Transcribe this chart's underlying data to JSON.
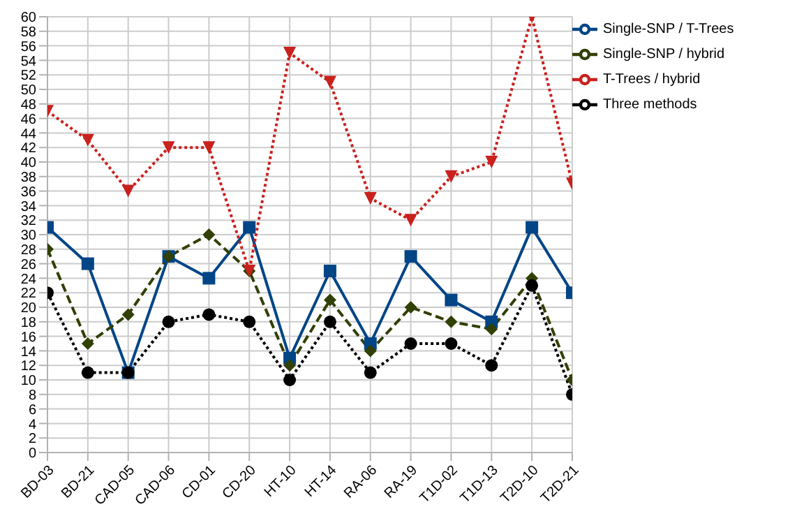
{
  "chart_data": {
    "type": "line",
    "categories": [
      "BD-03",
      "BD-21",
      "CAD-05",
      "CAD-06",
      "CD-01",
      "CD-20",
      "HT-10",
      "HT-14",
      "RA-06",
      "RA-19",
      "T1D-02",
      "T1D-13",
      "T2D-10",
      "T2D-21"
    ],
    "series": [
      {
        "name": "Single-SNP / T-Trees",
        "color": "#004586",
        "marker": "square",
        "line_style": "solid",
        "values": [
          31,
          26,
          11,
          27,
          24,
          31,
          13,
          25,
          15,
          27,
          21,
          18,
          31,
          22
        ]
      },
      {
        "name": "Single-SNP / hybrid",
        "color": "#314004",
        "marker": "diamond",
        "line_style": "dashed",
        "values": [
          28,
          15,
          19,
          27,
          30,
          25,
          12,
          21,
          14,
          20,
          18,
          17,
          24,
          10
        ]
      },
      {
        "name": "T-Trees / hybrid",
        "color": "#c9211e",
        "marker": "triangle",
        "line_style": "dotted",
        "values": [
          47,
          43,
          36,
          42,
          42,
          25,
          55,
          51,
          35,
          32,
          38,
          40,
          60,
          37
        ]
      },
      {
        "name": "Three methods",
        "color": "#000000",
        "marker": "circle",
        "line_style": "dotted",
        "values": [
          22,
          11,
          11,
          18,
          19,
          18,
          10,
          18,
          11,
          15,
          15,
          12,
          23,
          8
        ]
      }
    ],
    "ylim": [
      0,
      60
    ],
    "yticks": [
      0,
      2,
      4,
      6,
      8,
      10,
      12,
      14,
      16,
      18,
      20,
      22,
      24,
      26,
      28,
      30,
      32,
      34,
      36,
      38,
      40,
      42,
      44,
      46,
      48,
      50,
      52,
      54,
      56,
      58,
      60
    ],
    "grid": true,
    "legend": "top right"
  }
}
